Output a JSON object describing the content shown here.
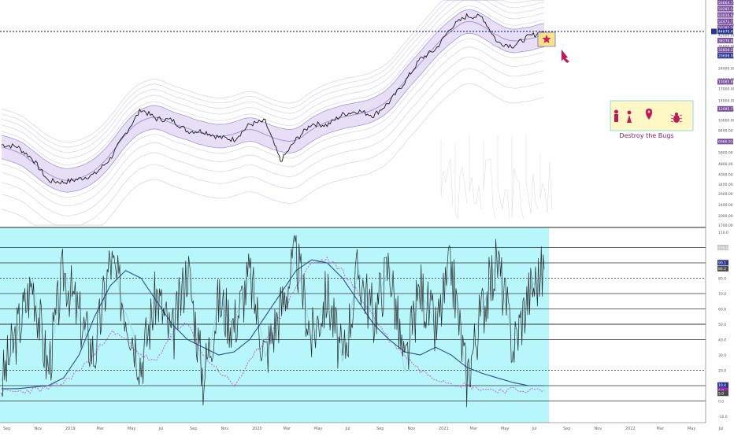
{
  "chart_data": [
    {
      "type": "line",
      "title": "",
      "scale": "log",
      "ylim": [
        1700,
        72000
      ],
      "x_labels": [
        "Sep",
        "Nov",
        "2019",
        "Mar",
        "May",
        "Jul",
        "Sep",
        "Nov",
        "2020",
        "Mar",
        "May",
        "Jul",
        "Sep",
        "Nov",
        "2021",
        "Mar",
        "May",
        "Jul",
        "Sep",
        "Nov",
        "2022",
        "Mar",
        "May",
        "Jul"
      ],
      "y_tick_labels": [
        "1700.00",
        "2000.00",
        "2400.00",
        "2900.00",
        "3400.00",
        "4000.00",
        "4800.00",
        "5800.00",
        "7000.00",
        "8400.00",
        "10000.00",
        "12000.00",
        "14000.00",
        "17000.00",
        "20000.00",
        "24000.00",
        "29000.00",
        "35000.00",
        "42000.00",
        "50000.00",
        "60000.00",
        "72000.00"
      ],
      "price_badges": [
        {
          "label": "56664.73",
          "color": "#7b4fa0"
        },
        {
          "label": "50285.59",
          "color": "#7b4fa0"
        },
        {
          "label": "63026.64",
          "color": "#7b4fa0"
        },
        {
          "label": "52471.78",
          "color": "#7b4fa0"
        },
        {
          "label": "50181.26",
          "color": "#7b4fa0"
        },
        {
          "label": "44670.49",
          "color": "#283593"
        },
        {
          "label": "38279.80",
          "color": "#7b4fa0"
        },
        {
          "label": "32816.22",
          "color": "#7b4fa0"
        },
        {
          "label": "29698.98",
          "color": "#283593"
        },
        {
          "label": "19085.88",
          "color": "#7b4fa0"
        },
        {
          "label": "12095.79",
          "color": "#7b4fa0"
        },
        {
          "label": "6966.93",
          "color": "#7b4fa0"
        }
      ],
      "current_price": 44670.49,
      "price_series": [
        [
          "Sep 2018",
          6600
        ],
        [
          "Oct 2018",
          6400
        ],
        [
          "Nov 2018",
          5200
        ],
        [
          "Dec 2018",
          3600
        ],
        [
          "Jan 2019",
          3500
        ],
        [
          "Feb 2019",
          3700
        ],
        [
          "Mar 2019",
          4000
        ],
        [
          "Apr 2019",
          5200
        ],
        [
          "May 2019",
          8000
        ],
        [
          "Jun 2019",
          12000
        ],
        [
          "Jul 2019",
          10200
        ],
        [
          "Aug 2019",
          10000
        ],
        [
          "Sep 2019",
          8300
        ],
        [
          "Oct 2019",
          8300
        ],
        [
          "Nov 2019",
          7500
        ],
        [
          "Dec 2019",
          7200
        ],
        [
          "Jan 2020",
          9300
        ],
        [
          "Feb 2020",
          9800
        ],
        [
          "Mar 2020",
          5000
        ],
        [
          "Apr 2020",
          7200
        ],
        [
          "May 2020",
          9400
        ],
        [
          "Jun 2020",
          9200
        ],
        [
          "Jul 2020",
          11000
        ],
        [
          "Aug 2020",
          11700
        ],
        [
          "Sep 2020",
          10800
        ],
        [
          "Oct 2020",
          13500
        ],
        [
          "Nov 2020",
          19000
        ],
        [
          "Dec 2020",
          28000
        ],
        [
          "Jan 2021",
          33000
        ],
        [
          "Feb 2021",
          48000
        ],
        [
          "Mar 2021",
          58000
        ],
        [
          "Apr 2021",
          57000
        ],
        [
          "May 2021",
          37000
        ],
        [
          "Jun 2021",
          35000
        ],
        [
          "Jul 2021",
          41000
        ],
        [
          "Aug 2021",
          44670
        ]
      ],
      "annotation": {
        "text": "Destroy the Bugs",
        "icons": [
          "worker-icon",
          "person-icon",
          "map-pin-icon",
          "bug-icon"
        ]
      }
    },
    {
      "type": "line",
      "title": "",
      "ylim": [
        -10,
        110
      ],
      "y_tick_labels": [
        "-10.0",
        "0.0",
        "10.0",
        "20.0",
        "30.0",
        "40.0",
        "50.0",
        "60.0",
        "70.0",
        "80.0",
        "90.0",
        "100.0",
        "110.0"
      ],
      "horizontal_levels": [
        0,
        10,
        20,
        40,
        50,
        60,
        70,
        80,
        90,
        100
      ],
      "value_badges": [
        {
          "label": "100.0",
          "value": 100,
          "color": "#c8c8c8"
        },
        {
          "label": "90.1",
          "value": 90.1,
          "color": "#283593"
        },
        {
          "label": "86.2",
          "value": 86.2,
          "color": "#4a4a4a"
        },
        {
          "label": "10.4",
          "value": 10.4,
          "color": "#283593"
        },
        {
          "label": "6.9",
          "value": 6.9,
          "color": "#9c27b0"
        },
        {
          "label": "5.0",
          "value": 5,
          "color": "#4a4a4a"
        }
      ],
      "series": [
        {
          "values": [
            12,
            45,
            78,
            20,
            85,
            55,
            30,
            92,
            60,
            25,
            70,
            40,
            88,
            15,
            65,
            50,
            82,
            30,
            60,
            95,
            40,
            70,
            25,
            85,
            55,
            90,
            20,
            75,
            45,
            88,
            15,
            60,
            92,
            35,
            70,
            86
          ]
        },
        {
          "values": [
            8,
            8,
            9,
            10,
            15,
            30,
            55,
            75,
            85,
            80,
            65,
            50,
            40,
            35,
            30,
            32,
            40,
            55,
            70,
            85,
            92,
            90,
            80,
            65,
            50,
            40,
            32,
            30,
            35,
            30,
            22,
            18,
            15,
            12,
            10,
            10
          ]
        },
        {
          "values": [
            6,
            6,
            7,
            8,
            12,
            20,
            30,
            45,
            40,
            30,
            25,
            45,
            50,
            30,
            20,
            10,
            25,
            40,
            55,
            75,
            90,
            92,
            85,
            70,
            55,
            40,
            30,
            20,
            15,
            12,
            10,
            8,
            7,
            7,
            7,
            7
          ]
        }
      ]
    }
  ],
  "x_axis": {
    "labels": [
      "Sep",
      "Nov",
      "2019",
      "Mar",
      "May",
      "Jul",
      "Sep",
      "Nov",
      "2020",
      "Mar",
      "May",
      "Jul",
      "Sep",
      "Nov",
      "2021",
      "Mar",
      "May",
      "Jul",
      "Sep",
      "Nov",
      "2022",
      "Mar",
      "May",
      "Jul"
    ]
  },
  "annotation": {
    "text": "Destroy the Bugs"
  },
  "colors": {
    "price_line": "#1a1a1a",
    "band_fill": "#e6dcf5",
    "band_line": "#9b8cd0",
    "faint_band": "#c9c4ee",
    "price_level": "#1a237e",
    "oscillator_bg": "#b7f7fb",
    "annotation_box": "#fff8c4",
    "annotation_border": "#8ed8ee",
    "annotation_icon": "#c2185b",
    "annotation_text": "#8e1a6d"
  }
}
